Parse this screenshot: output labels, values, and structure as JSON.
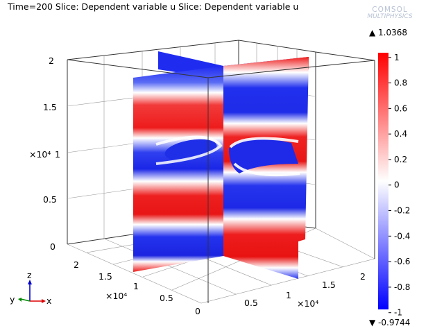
{
  "title": "Time=200   Slice: Dependent variable u  Slice: Dependent variable u",
  "logo": {
    "line1": "COMSOL",
    "line2": "MULTIPHYSICS"
  },
  "chart_data": {
    "type": "heatmap",
    "plot_kind": "3D slice plot",
    "time": 200,
    "slices": [
      "Dependent variable u",
      "Dependent variable u"
    ],
    "axes": {
      "x": {
        "ticks": [
          "0",
          "0.5",
          "1",
          "1.5",
          "2"
        ],
        "multiplier": "×10⁴",
        "multiplier_at": "1",
        "range": [
          0,
          2.2
        ]
      },
      "y": {
        "ticks": [
          "0",
          "0.5",
          "1",
          "1.5",
          "2"
        ],
        "multiplier": "×10⁴",
        "multiplier_at": "1",
        "range": [
          0,
          2.2
        ]
      },
      "z": {
        "ticks": [
          "0",
          "0.5",
          "1",
          "1.5",
          "2"
        ],
        "multiplier": "×10⁴",
        "multiplier_at": "1",
        "range": [
          0,
          2
        ]
      }
    },
    "colorbar": {
      "max_label": "▲ 1.0368",
      "min_label": "▼ -0.9744",
      "ticks": [
        "1",
        "0.8",
        "0.6",
        "0.4",
        "0.2",
        "0",
        "-0.2",
        "-0.4",
        "-0.6",
        "-0.8",
        "-1"
      ],
      "colors": [
        "#0000ff",
        "#ffffff",
        "#ff0000"
      ]
    },
    "grid": true,
    "triad": {
      "z": "z",
      "y": "y",
      "x": "x"
    }
  }
}
